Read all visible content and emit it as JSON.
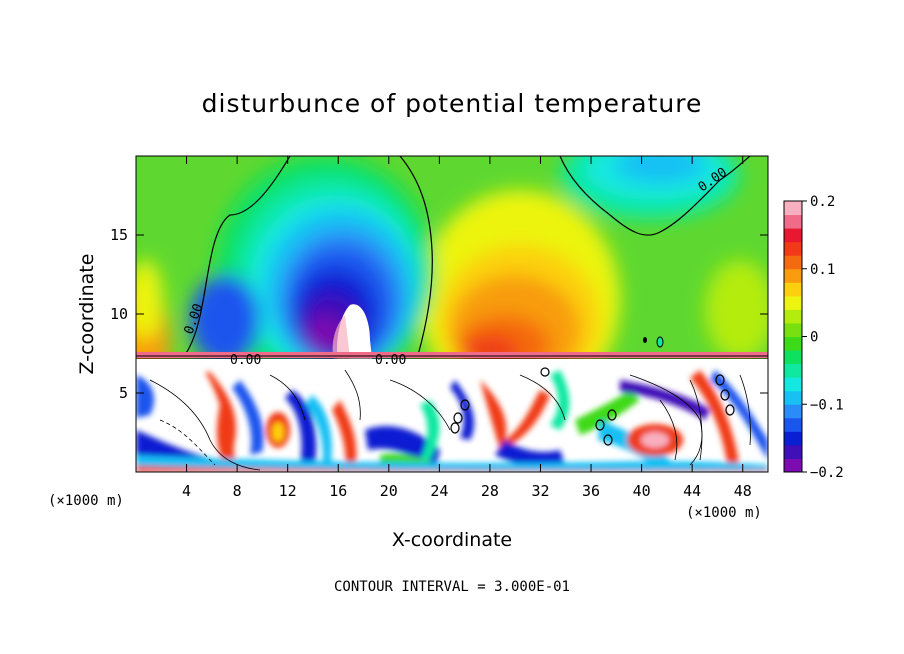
{
  "chart_data": {
    "type": "heatmap",
    "title": "disturbunce of potential temperature",
    "xlabel": "X-coordinate",
    "ylabel": "Z-coordinate",
    "x_unit_label": "(×1000 m)",
    "footer": "CONTOUR INTERVAL = 3.000E-01",
    "xlim": [
      0,
      50
    ],
    "ylim": [
      0,
      20
    ],
    "xticks": [
      4,
      8,
      12,
      16,
      20,
      24,
      28,
      32,
      36,
      40,
      44,
      48
    ],
    "yticks": [
      5,
      10,
      15
    ],
    "colorbar": {
      "range": [
        -0.2,
        0.2
      ],
      "ticks": [
        "0.2",
        "0.1",
        "0",
        "−0.1",
        "−0.2"
      ],
      "tick_values": [
        0.2,
        0.1,
        0,
        -0.1,
        -0.2
      ],
      "colors": [
        "#7c0bb0",
        "#3f0fb8",
        "#0a1fd2",
        "#1a55ee",
        "#2a8cf6",
        "#18c0f4",
        "#14e8e0",
        "#10e8a0",
        "#10e060",
        "#3cda18",
        "#78e010",
        "#b4ec10",
        "#ecf410",
        "#fcd010",
        "#f89c10",
        "#f46a10",
        "#f03a18",
        "#e81830",
        "#f06a8a",
        "#f8b0c0"
      ]
    },
    "contour_labels": [
      "0.00",
      "0.00",
      "0.00",
      "0.00"
    ]
  }
}
